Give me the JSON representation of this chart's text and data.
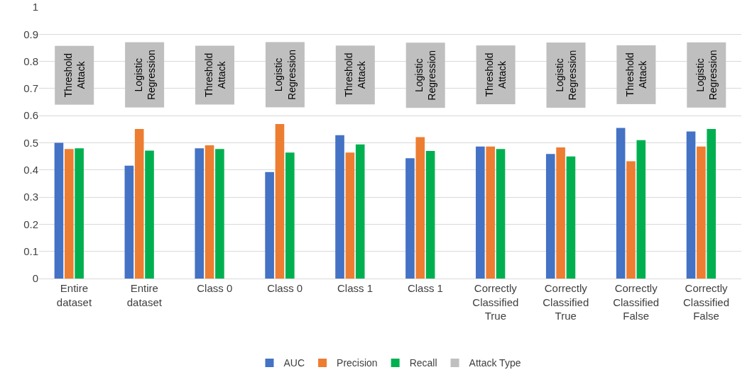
{
  "chart_data": {
    "type": "bar",
    "categories": [
      "Entire dataset",
      "Entire dataset",
      "Class 0",
      "Class 0",
      "Class 1",
      "Class 1",
      "Correctly Classified True",
      "Correctly Classified True",
      "Correctly Classified False",
      "Correctly Classified False"
    ],
    "series": [
      {
        "name": "AUC",
        "color": "#4472c4",
        "values": [
          0.5,
          0.416,
          0.48,
          0.392,
          0.528,
          0.443,
          0.486,
          0.459,
          0.555,
          0.542
        ]
      },
      {
        "name": "Precision",
        "color": "#ed7d31",
        "values": [
          0.477,
          0.551,
          0.491,
          0.569,
          0.464,
          0.521,
          0.486,
          0.483,
          0.432,
          0.486
        ]
      },
      {
        "name": "Recall",
        "color": "#00b050",
        "values": [
          0.48,
          0.471,
          0.477,
          0.464,
          0.494,
          0.47,
          0.477,
          0.45,
          0.51,
          0.551
        ]
      },
      {
        "name": "Attack Type",
        "color": "#bfbfbf",
        "values": [
          null,
          null,
          null,
          null,
          null,
          null,
          null,
          null,
          null,
          null
        ],
        "value_labels": [
          "Threshold Attack",
          "Logistic Regression",
          "Threshold Attack",
          "Logistic Regression",
          "Threshold Attack",
          "Logistic Regression",
          "Threshold Attack",
          "Logistic Regression",
          "Threshold Attack",
          "Logistic Regression"
        ]
      }
    ],
    "ylim": [
      0,
      1
    ],
    "yticks": [
      0,
      0.1,
      0.2,
      0.3,
      0.4,
      0.5,
      0.6,
      0.7,
      0.8,
      0.9,
      1
    ],
    "grid": "y",
    "legend": "bottom"
  }
}
